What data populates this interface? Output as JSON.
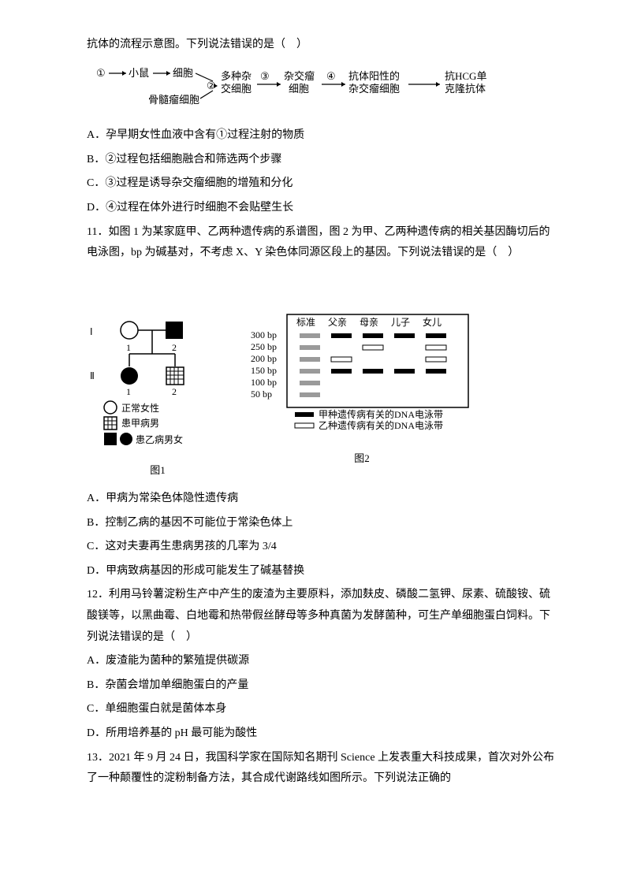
{
  "q10": {
    "intro": "抗体的流程示意图。下列说法错误的是（　）",
    "flow": {
      "n1": "①",
      "arrow1": "→",
      "mouse": "小鼠",
      "arrow2": "→",
      "cell": "细胞",
      "n2": "②",
      "myeloma": "骨髓瘤细胞",
      "hybrid": "多种杂交细胞",
      "n3": "③",
      "arrow3": "→",
      "hybridoma": "杂交瘤细胞",
      "n4": "④",
      "arrow4": "→",
      "positive": "抗体阳性的杂交瘤细胞",
      "arrow5": "→",
      "product": "抗HCG单克隆抗体"
    },
    "optA": "A．孕早期女性血液中含有①过程注射的物质",
    "optB": "B．②过程包括细胞融合和筛选两个步骤",
    "optC": "C．③过程是诱导杂交瘤细胞的增殖和分化",
    "optD": "D．④过程在体外进行时细胞不会贴壁生长"
  },
  "q11": {
    "stem": "11．如图 1 为某家庭甲、乙两种遗传病的系谱图，图 2 为甲、乙两种遗传病的相关基因酶切后的电泳图，bp 为碱基对，不考虑 X、Y 染色体同源区段上的基因。下列说法错误的是（　）",
    "pedigree": {
      "gen1": "Ⅰ",
      "gen2": "Ⅱ",
      "p1": "1",
      "p2": "2",
      "legend_female": "正常女性",
      "legend_amale": "患甲病男",
      "legend_bboth": "患乙病男女",
      "caption": "图1"
    },
    "gel": {
      "header_std": "标准",
      "header_fa": "父亲",
      "header_mo": "母亲",
      "header_son": "儿子",
      "header_dau": "女儿",
      "rows": [
        "300 bp",
        "250 bp",
        "200 bp",
        "150 bp",
        "100 bp",
        "50 bp"
      ],
      "legend_a": "甲种遗传病有关的DNA电泳带",
      "legend_b": "乙种遗传病有关的DNA电泳带",
      "caption": "图2",
      "cells": {
        "std": [
          "gray",
          "gray",
          "gray",
          "gray",
          "gray",
          "gray"
        ],
        "fa": [
          "black",
          "",
          "white",
          "black",
          "",
          ""
        ],
        "mo": [
          "black",
          "white",
          "",
          "black",
          "",
          ""
        ],
        "son": [
          "black",
          "",
          "",
          "black",
          "",
          ""
        ],
        "dau": [
          "black",
          "white",
          "white",
          "black",
          "",
          ""
        ]
      },
      "colors": {
        "gray": "#9a9a9a",
        "black": "#000000",
        "white_border": "#000000",
        "white_fill": "#ffffff"
      }
    },
    "optA": "A．甲病为常染色体隐性遗传病",
    "optB": "B．控制乙病的基因不可能位于常染色体上",
    "optC": "C．这对夫妻再生患病男孩的几率为 3/4",
    "optD": "D．甲病致病基因的形成可能发生了碱基替换"
  },
  "q12": {
    "stem": "12．利用马铃薯淀粉生产中产生的废渣为主要原料，添加麸皮、磷酸二氢钾、尿素、硫酸铵、硫酸镁等，以黑曲霉、白地霉和热带假丝酵母等多种真菌为发酵菌种，可生产单细胞蛋白饲料。下列说法错误的是（　）",
    "optA": "A．废渣能为菌种的繁殖提供碳源",
    "optB": "B．杂菌会增加单细胞蛋白的产量",
    "optC": "C．单细胞蛋白就是菌体本身",
    "optD": "D．所用培养基的 pH 最可能为酸性"
  },
  "q13": {
    "stem": "13．2021 年 9 月 24 日，我国科学家在国际知名期刊 Science 上发表重大科技成果，首次对外公布了一种颠覆性的淀粉制备方法，其合成代谢路线如图所示。下列说法正确的"
  }
}
